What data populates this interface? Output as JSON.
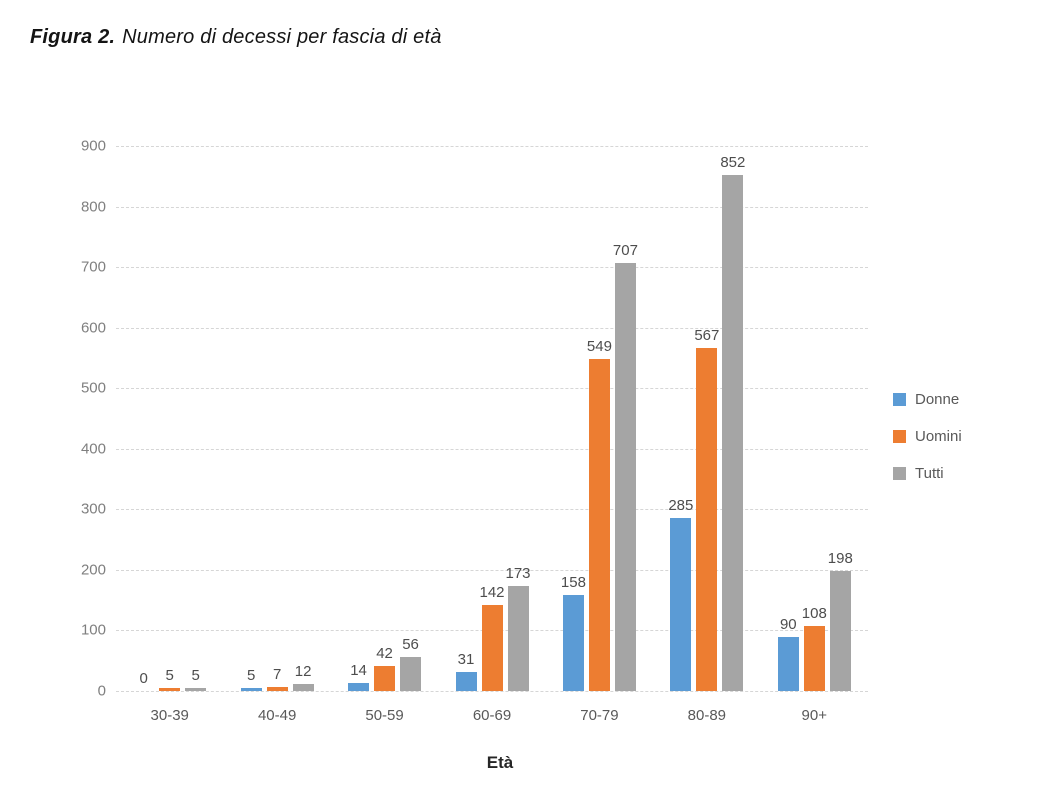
{
  "figure": {
    "title_prefix": "Figura 2.",
    "title_text": "Numero di decessi per fascia di età"
  },
  "chart_data": {
    "type": "bar",
    "categories": [
      "30-39",
      "40-49",
      "50-59",
      "60-69",
      "70-79",
      "80-89",
      "90+"
    ],
    "series": [
      {
        "name": "Donne",
        "color": "#5B9BD5",
        "values": [
          0,
          5,
          14,
          31,
          158,
          285,
          90
        ]
      },
      {
        "name": "Uomini",
        "color": "#ED7D31",
        "values": [
          5,
          7,
          42,
          142,
          549,
          567,
          108
        ]
      },
      {
        "name": "Tutti",
        "color": "#A5A5A5",
        "values": [
          5,
          12,
          56,
          173,
          707,
          852,
          198
        ]
      }
    ],
    "title": "",
    "xlabel": "Età",
    "ylabel": "",
    "ylim": [
      0,
      900
    ],
    "ytick_step": 100,
    "grid": true,
    "gridline_style": "dashed",
    "data_labels": true,
    "legend_position": "right",
    "colors": {
      "grid": "#D6D6D6",
      "y_tick_text": "#7F7F7F",
      "x_tick_text": "#595959",
      "data_label_text": "#4D4D4D"
    }
  }
}
